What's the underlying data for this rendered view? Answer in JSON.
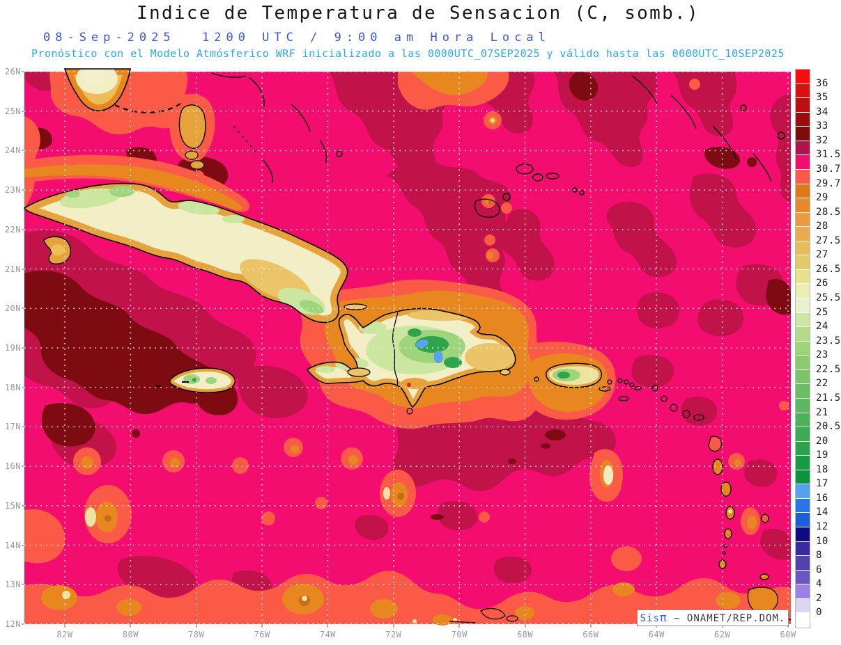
{
  "title": "Indice de Temperatura de Sensacion (C, somb.)",
  "header": {
    "date": "08-Sep-2025",
    "time": "1200 UTC / 9:00 am Hora Local",
    "forecast_note": "Pronóstico con el Modelo Atmósferico WRF inicializado a las 0000UTC_07SEP2025 y válido hasta las  0000UTC_10SEP2025"
  },
  "axes": {
    "lat_labels": [
      "26N",
      "25N",
      "24N",
      "23N",
      "22N",
      "21N",
      "20N",
      "19N",
      "18N",
      "17N",
      "16N",
      "15N",
      "14N",
      "13N",
      "12N"
    ],
    "lon_labels": [
      "82W",
      "80W",
      "78W",
      "76W",
      "74W",
      "72W",
      "70W",
      "68W",
      "66W",
      "64W",
      "62W",
      "60W"
    ]
  },
  "colorbar": {
    "tick_labels": [
      "36",
      "35",
      "34",
      "33",
      "32",
      "31.5",
      "30.7",
      "29.7",
      "29",
      "28.5",
      "28",
      "27.5",
      "27",
      "26.5",
      "26",
      "25.5",
      "25",
      "24",
      "23.5",
      "23",
      "22.5",
      "22",
      "21.5",
      "21",
      "20.5",
      "20",
      "19",
      "18",
      "17",
      "16",
      "14",
      "12",
      "10",
      "8",
      "6",
      "4",
      "2",
      "0"
    ],
    "cell_colors": [
      "#FB0C0C",
      "#D81010",
      "#BC0E0E",
      "#9C0C0C",
      "#7E0A0A",
      "#B2124C",
      "#F20D6E",
      "#FA5A46",
      "#E07818",
      "#E8882C",
      "#EC9A40",
      "#EAAA4E",
      "#E6BC5C",
      "#E2CA6A",
      "#E8E28C",
      "#ECEFB2",
      "#E9F0CD",
      "#CDE7A2",
      "#B2DC88",
      "#9CD476",
      "#8CCA70",
      "#7CC46A",
      "#6CBE64",
      "#5CB85E",
      "#4CB258",
      "#3CAC52",
      "#2AA44A",
      "#189C42",
      "#08943A",
      "#54A0F2",
      "#2876E6",
      "#1C5ED6",
      "#100A80",
      "#382C9C",
      "#5142B2",
      "#6C55C4",
      "#9C80E8",
      "#DAD6F3",
      "#FFFFFF"
    ]
  },
  "attribution": {
    "brand_prefix": "Sis",
    "brand_pi": "π",
    "separator": "−",
    "source": "ONAMET/REP.DOM."
  },
  "palette": {
    "magenta": "#F20D6E",
    "crimson": "#C1134A",
    "maroon": "#7E0B12",
    "salmon": "#FA5A46",
    "orange": "#E8861F",
    "tan_orange": "#E8A23C",
    "tan": "#EBC468",
    "cream": "#F2EFC6",
    "pale_yellow": "#EFE3A2",
    "pale_green": "#CBE69E",
    "green": "#9ED47C",
    "dark_green": "#2FA44B",
    "lake_blue": "#5AA2F2",
    "grid": "#EDEDED",
    "coastline": "#000000"
  }
}
